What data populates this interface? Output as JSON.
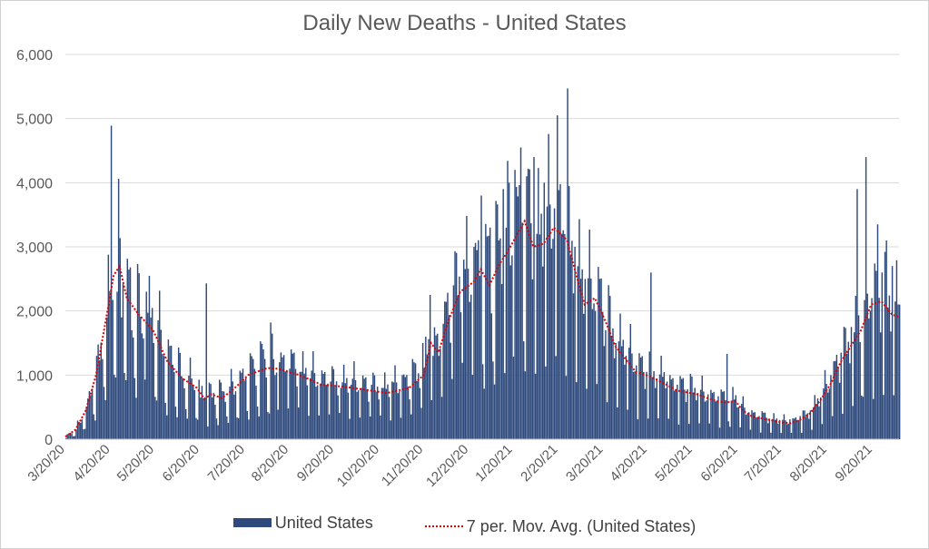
{
  "chart_data": {
    "type": "bar",
    "title": "Daily New Deaths - United States",
    "xlabel": "",
    "ylabel": "",
    "ylim": [
      0,
      6000
    ],
    "yticks": [
      0,
      1000,
      2000,
      3000,
      4000,
      5000,
      6000
    ],
    "ytick_labels": [
      "0",
      "1,000",
      "2,000",
      "3,000",
      "4,000",
      "5,000",
      "6,000"
    ],
    "xtick_labels": [
      "3/20/20",
      "4/20/20",
      "5/20/20",
      "6/20/20",
      "7/20/20",
      "8/20/20",
      "9/20/20",
      "10/20/20",
      "11/20/20",
      "12/20/20",
      "1/20/21",
      "2/20/21",
      "3/20/21",
      "4/20/21",
      "5/20/21",
      "6/20/21",
      "7/20/21",
      "8/20/21",
      "9/20/21"
    ],
    "days_total": 570,
    "grid": true,
    "bar_color": "#2e4a7d",
    "avg_color": "#e00000",
    "legend_position": "bottom",
    "series": [
      {
        "name": "United States",
        "kind": "bar",
        "anchors": [
          [
            0,
            20
          ],
          [
            7,
            150
          ],
          [
            14,
            500
          ],
          [
            21,
            1300
          ],
          [
            28,
            1900
          ],
          [
            31,
            4890
          ],
          [
            35,
            2300
          ],
          [
            38,
            1900
          ],
          [
            45,
            1700
          ],
          [
            52,
            1650
          ],
          [
            55,
            2300
          ],
          [
            60,
            1500
          ],
          [
            67,
            1300
          ],
          [
            74,
            1050
          ],
          [
            80,
            950
          ],
          [
            87,
            850
          ],
          [
            92,
            650
          ],
          [
            96,
            2430
          ],
          [
            100,
            650
          ],
          [
            107,
            750
          ],
          [
            114,
            900
          ],
          [
            121,
            1100
          ],
          [
            128,
            1250
          ],
          [
            135,
            1400
          ],
          [
            140,
            1820
          ],
          [
            146,
            1200
          ],
          [
            153,
            1100
          ],
          [
            160,
            1050
          ],
          [
            167,
            950
          ],
          [
            174,
            850
          ],
          [
            181,
            900
          ],
          [
            188,
            800
          ],
          [
            195,
            850
          ],
          [
            202,
            800
          ],
          [
            209,
            850
          ],
          [
            216,
            800
          ],
          [
            223,
            900
          ],
          [
            230,
            1000
          ],
          [
            237,
            1250
          ],
          [
            244,
            1500
          ],
          [
            249,
            2250
          ],
          [
            251,
            1300
          ],
          [
            258,
            1800
          ],
          [
            265,
            2400
          ],
          [
            272,
            2800
          ],
          [
            279,
            3000
          ],
          [
            284,
            3800
          ],
          [
            290,
            3300
          ],
          [
            296,
            3100
          ],
          [
            299,
            3900
          ],
          [
            303,
            4000
          ],
          [
            307,
            4200
          ],
          [
            311,
            4550
          ],
          [
            315,
            4100
          ],
          [
            320,
            4400
          ],
          [
            327,
            4000
          ],
          [
            334,
            3600
          ],
          [
            336,
            5050
          ],
          [
            341,
            3200
          ],
          [
            343,
            5470
          ],
          [
            348,
            3000
          ],
          [
            355,
            2500
          ],
          [
            362,
            2000
          ],
          [
            369,
            1700
          ],
          [
            376,
            1500
          ],
          [
            383,
            1300
          ],
          [
            390,
            1150
          ],
          [
            397,
            1050
          ],
          [
            400,
            2600
          ],
          [
            404,
            950
          ],
          [
            411,
            900
          ],
          [
            418,
            850
          ],
          [
            425,
            780
          ],
          [
            432,
            720
          ],
          [
            439,
            700
          ],
          [
            446,
            670
          ],
          [
            452,
            1330
          ],
          [
            455,
            600
          ],
          [
            460,
            500
          ],
          [
            467,
            420
          ],
          [
            474,
            360
          ],
          [
            481,
            320
          ],
          [
            488,
            300
          ],
          [
            495,
            310
          ],
          [
            502,
            360
          ],
          [
            509,
            450
          ],
          [
            516,
            650
          ],
          [
            523,
            1000
          ],
          [
            530,
            1350
          ],
          [
            537,
            1750
          ],
          [
            541,
            3900
          ],
          [
            547,
            4400
          ],
          [
            551,
            2200
          ],
          [
            555,
            3350
          ],
          [
            558,
            2600
          ],
          [
            561,
            3100
          ],
          [
            565,
            2700
          ],
          [
            570,
            2100
          ]
        ]
      },
      {
        "name": "7 per. Mov. Avg. (United States)",
        "kind": "line",
        "anchors": [
          [
            0,
            40
          ],
          [
            7,
            150
          ],
          [
            14,
            450
          ],
          [
            21,
            1000
          ],
          [
            28,
            1900
          ],
          [
            33,
            2550
          ],
          [
            37,
            2700
          ],
          [
            42,
            2200
          ],
          [
            50,
            1950
          ],
          [
            60,
            1700
          ],
          [
            70,
            1200
          ],
          [
            80,
            950
          ],
          [
            90,
            800
          ],
          [
            95,
            630
          ],
          [
            100,
            700
          ],
          [
            107,
            640
          ],
          [
            115,
            780
          ],
          [
            125,
            1000
          ],
          [
            132,
            1060
          ],
          [
            138,
            1110
          ],
          [
            145,
            1100
          ],
          [
            160,
            1000
          ],
          [
            175,
            850
          ],
          [
            190,
            820
          ],
          [
            205,
            770
          ],
          [
            220,
            720
          ],
          [
            235,
            800
          ],
          [
            245,
            1000
          ],
          [
            250,
            1500
          ],
          [
            255,
            1350
          ],
          [
            262,
            1850
          ],
          [
            270,
            2300
          ],
          [
            279,
            2450
          ],
          [
            284,
            2650
          ],
          [
            290,
            2400
          ],
          [
            296,
            2700
          ],
          [
            303,
            2950
          ],
          [
            309,
            3200
          ],
          [
            314,
            3400
          ],
          [
            320,
            3000
          ],
          [
            327,
            3050
          ],
          [
            334,
            3300
          ],
          [
            343,
            3100
          ],
          [
            350,
            2500
          ],
          [
            355,
            2100
          ],
          [
            362,
            2200
          ],
          [
            370,
            1800
          ],
          [
            376,
            1450
          ],
          [
            383,
            1250
          ],
          [
            390,
            1050
          ],
          [
            397,
            1000
          ],
          [
            404,
            930
          ],
          [
            411,
            850
          ],
          [
            418,
            760
          ],
          [
            425,
            730
          ],
          [
            432,
            700
          ],
          [
            439,
            640
          ],
          [
            446,
            590
          ],
          [
            452,
            570
          ],
          [
            458,
            600
          ],
          [
            463,
            450
          ],
          [
            470,
            350
          ],
          [
            477,
            320
          ],
          [
            484,
            290
          ],
          [
            490,
            260
          ],
          [
            496,
            250
          ],
          [
            502,
            300
          ],
          [
            509,
            400
          ],
          [
            516,
            600
          ],
          [
            523,
            850
          ],
          [
            530,
            1200
          ],
          [
            537,
            1450
          ],
          [
            544,
            1700
          ],
          [
            551,
            2100
          ],
          [
            558,
            2150
          ],
          [
            565,
            1950
          ],
          [
            570,
            1900
          ]
        ]
      }
    ]
  }
}
